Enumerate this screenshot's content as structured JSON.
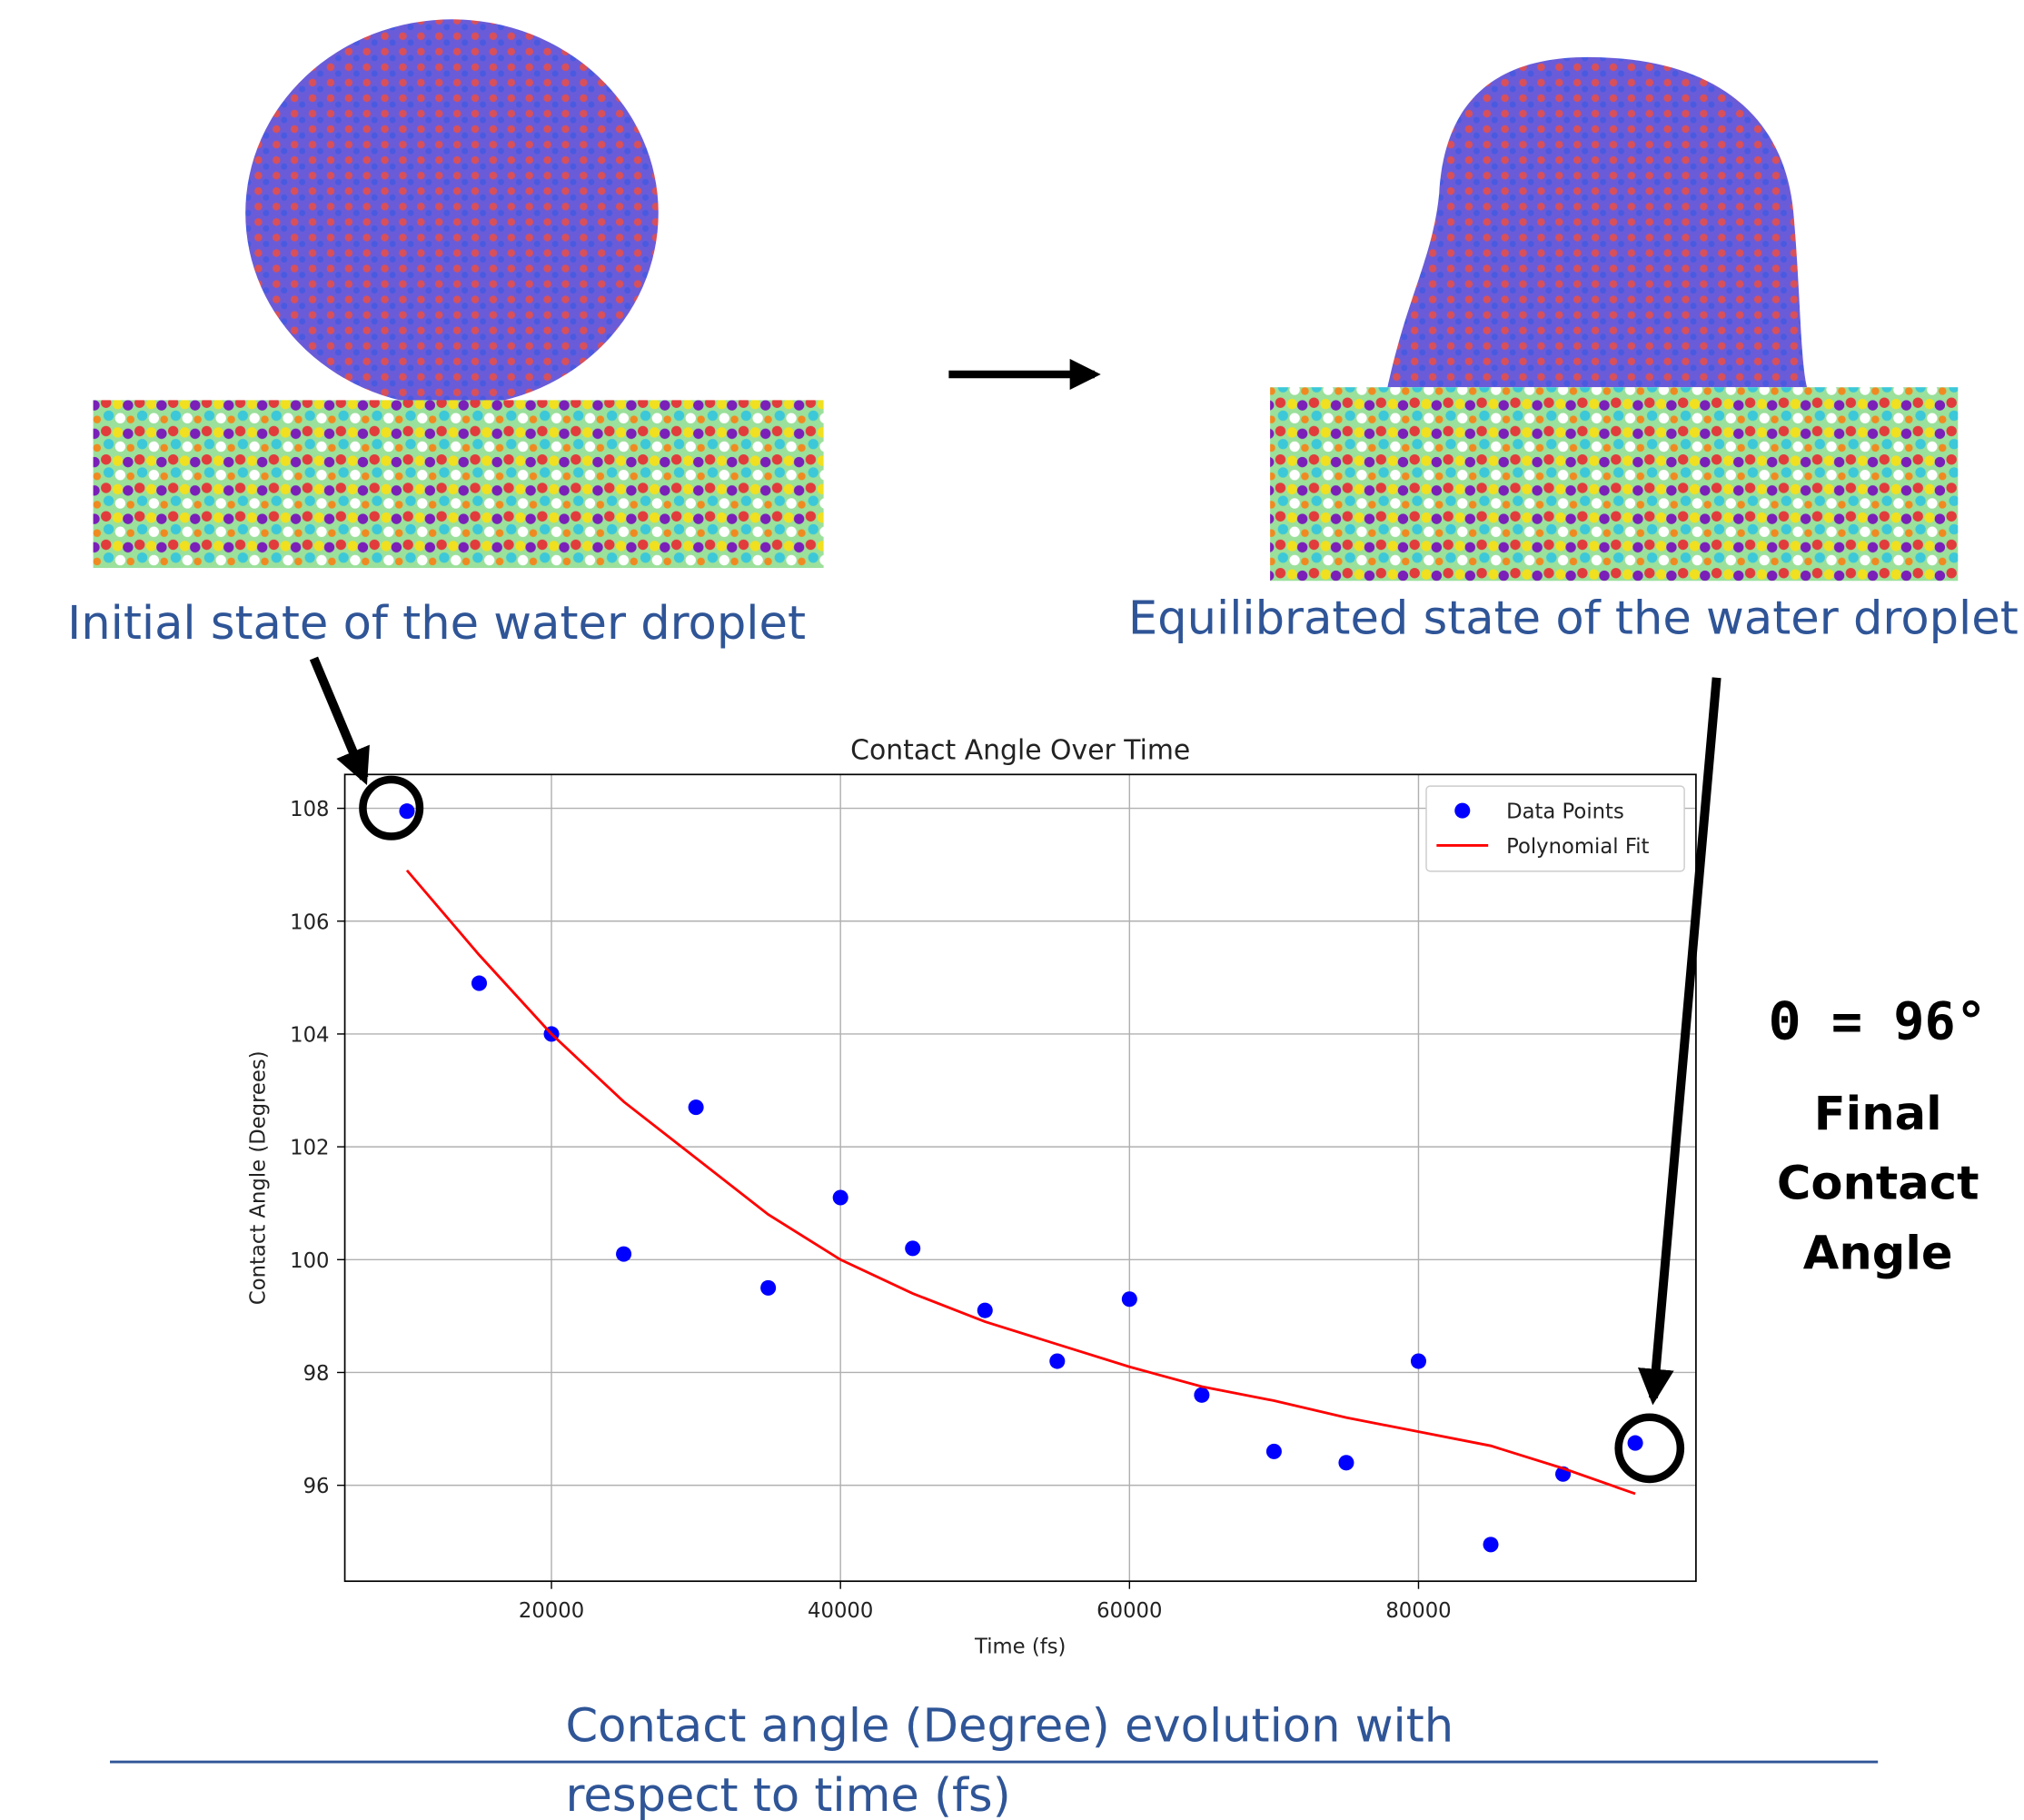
{
  "captions": {
    "initial": "Initial state of the water droplet",
    "equilibrated": "Equilibrated state of the water droplet",
    "chart": [
      "Contact angle (Degree) evolution with",
      "respect to time (fs)"
    ]
  },
  "annotation": {
    "angle": "Θ =  96°",
    "label": [
      "Final",
      "Contact",
      "Angle"
    ]
  },
  "chart_data": {
    "type": "scatter",
    "title": "Contact Angle Over Time",
    "x_label": "Time (fs)",
    "y_label": "Contact Angle (Degrees)",
    "x": [
      10000,
      15000,
      20000,
      25000,
      30000,
      35000,
      40000,
      45000,
      50000,
      55000,
      60000,
      65000,
      70000,
      75000,
      80000,
      85000,
      90000,
      95000
    ],
    "series": [
      {
        "name": "Data Points",
        "color": "#0000ff",
        "mode": "markers",
        "values": [
          107.95,
          104.9,
          104.0,
          100.1,
          102.7,
          99.5,
          101.1,
          100.2,
          99.1,
          98.2,
          99.3,
          97.6,
          96.6,
          96.4,
          98.2,
          94.95,
          96.2,
          96.75
        ]
      },
      {
        "name": "Polynomial Fit",
        "color": "#ff0000",
        "mode": "line",
        "values": [
          106.9,
          105.4,
          104.0,
          102.8,
          101.8,
          100.8,
          100.0,
          99.4,
          98.9,
          98.5,
          98.1,
          97.75,
          97.5,
          97.2,
          96.95,
          96.7,
          96.3,
          95.85
        ]
      }
    ],
    "xlim": [
      5700,
      99200
    ],
    "ylim": [
      94.3,
      108.6
    ],
    "xticks": [
      20000,
      40000,
      60000,
      80000
    ],
    "yticks": [
      96,
      98,
      100,
      102,
      104,
      106,
      108
    ],
    "grid": true,
    "legend": "upper right"
  }
}
